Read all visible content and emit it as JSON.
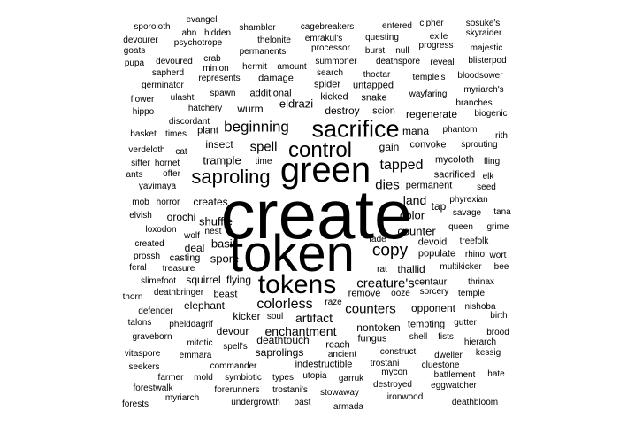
{
  "cloud": {
    "text_color": "#000000",
    "background": "#ffffff",
    "words": [
      {
        "text": "create",
        "weight": 100
      },
      {
        "text": "token",
        "weight": 92
      },
      {
        "text": "green",
        "weight": 72
      },
      {
        "text": "tokens",
        "weight": 55
      },
      {
        "text": "sacrifice",
        "weight": 55
      },
      {
        "text": "control",
        "weight": 52
      },
      {
        "text": "saproling",
        "weight": 45
      },
      {
        "text": "copy",
        "weight": 40
      },
      {
        "text": "beginning",
        "weight": 36
      },
      {
        "text": "tapped",
        "weight": 34
      },
      {
        "text": "colorless",
        "weight": 34
      },
      {
        "text": "creature's",
        "weight": 32
      },
      {
        "text": "counters",
        "weight": 32
      },
      {
        "text": "spell",
        "weight": 32
      },
      {
        "text": "dies",
        "weight": 32
      },
      {
        "text": "artifact",
        "weight": 30
      },
      {
        "text": "land",
        "weight": 30
      },
      {
        "text": "enchantment",
        "weight": 29
      },
      {
        "text": "color",
        "weight": 28
      },
      {
        "text": "counter",
        "weight": 28
      },
      {
        "text": "basic",
        "weight": 27
      },
      {
        "text": "spore",
        "weight": 27
      },
      {
        "text": "shuffle",
        "weight": 26
      },
      {
        "text": "trample",
        "weight": 26
      },
      {
        "text": "eldrazi",
        "weight": 26
      },
      {
        "text": "creates",
        "weight": 25
      },
      {
        "text": "orochi",
        "weight": 25
      },
      {
        "text": "mana",
        "weight": 24
      },
      {
        "text": "deal",
        "weight": 24
      },
      {
        "text": "gain",
        "weight": 24
      },
      {
        "text": "tap",
        "weight": 24
      },
      {
        "text": "kicker",
        "weight": 24
      },
      {
        "text": "devour",
        "weight": 24
      },
      {
        "text": "elephant",
        "weight": 24
      },
      {
        "text": "insect",
        "weight": 24
      },
      {
        "text": "flying",
        "weight": 24
      },
      {
        "text": "squirrel",
        "weight": 24
      },
      {
        "text": "thallid",
        "weight": 24
      },
      {
        "text": "destroy",
        "weight": 24
      },
      {
        "text": "wurm",
        "weight": 24
      },
      {
        "text": "deathtouch",
        "weight": 24
      },
      {
        "text": "opponent",
        "weight": 23
      },
      {
        "text": "saprolings",
        "weight": 23
      },
      {
        "text": "regenerate",
        "weight": 23
      },
      {
        "text": "nontoken",
        "weight": 23
      },
      {
        "text": "remove",
        "weight": 22
      },
      {
        "text": "reach",
        "weight": 22
      },
      {
        "text": "fungus",
        "weight": 22
      },
      {
        "text": "devoid",
        "weight": 22
      },
      {
        "text": "populate",
        "weight": 22
      },
      {
        "text": "beast",
        "weight": 22
      },
      {
        "text": "permanent",
        "weight": 22
      },
      {
        "text": "sacrificed",
        "weight": 22
      },
      {
        "text": "additional",
        "weight": 22
      },
      {
        "text": "convoke",
        "weight": 22
      },
      {
        "text": "tempting",
        "weight": 22
      },
      {
        "text": "mycoloth",
        "weight": 22
      },
      {
        "text": "centaur",
        "weight": 22
      },
      {
        "text": "damage",
        "weight": 22
      },
      {
        "text": "untapped",
        "weight": 22
      },
      {
        "text": "casting",
        "weight": 22
      },
      {
        "text": "kicked",
        "weight": 22
      },
      {
        "text": "snake",
        "weight": 22
      },
      {
        "text": "spider",
        "weight": 22
      },
      {
        "text": "scion",
        "weight": 22
      },
      {
        "text": "indestructible",
        "weight": 21
      },
      {
        "text": "plant",
        "weight": 21
      },
      {
        "text": "sorcery",
        "weight": 20
      },
      {
        "text": "ooze",
        "weight": 20
      },
      {
        "text": "search",
        "weight": 20
      },
      {
        "text": "wolf",
        "weight": 20
      },
      {
        "text": "treefolk",
        "weight": 19
      },
      {
        "text": "queen",
        "weight": 19
      },
      {
        "text": "time",
        "weight": 19
      },
      {
        "text": "phantom",
        "weight": 19
      },
      {
        "text": "sprouting",
        "weight": 19
      },
      {
        "text": "fling",
        "weight": 19
      },
      {
        "text": "savage",
        "weight": 19
      },
      {
        "text": "grime",
        "weight": 19
      },
      {
        "text": "phyrexian",
        "weight": 19
      },
      {
        "text": "temple",
        "weight": 19
      },
      {
        "text": "rhino",
        "weight": 19
      },
      {
        "text": "wort",
        "weight": 19
      },
      {
        "text": "tana",
        "weight": 19
      },
      {
        "text": "multikicker",
        "weight": 19
      },
      {
        "text": "bee",
        "weight": 19
      },
      {
        "text": "thrinax",
        "weight": 19
      },
      {
        "text": "nishoba",
        "weight": 19
      },
      {
        "text": "birth",
        "weight": 19
      },
      {
        "text": "hierarch",
        "weight": 19
      },
      {
        "text": "brood",
        "weight": 19
      },
      {
        "text": "kessig",
        "weight": 19
      },
      {
        "text": "hate",
        "weight": 19
      },
      {
        "text": "gutter",
        "weight": 19
      },
      {
        "text": "battlement",
        "weight": 19
      },
      {
        "text": "cluestone",
        "weight": 19
      },
      {
        "text": "dweller",
        "weight": 19
      },
      {
        "text": "eggwatcher",
        "weight": 19
      },
      {
        "text": "deathbloom",
        "weight": 19
      },
      {
        "text": "ironwood",
        "weight": 19
      },
      {
        "text": "mycon",
        "weight": 19
      },
      {
        "text": "destroyed",
        "weight": 19
      },
      {
        "text": "trostani",
        "weight": 19
      },
      {
        "text": "construct",
        "weight": 19
      },
      {
        "text": "shell",
        "weight": 19
      },
      {
        "text": "fists",
        "weight": 19
      },
      {
        "text": "ancient",
        "weight": 19
      },
      {
        "text": "garruk",
        "weight": 19
      },
      {
        "text": "stowaway",
        "weight": 19
      },
      {
        "text": "armada",
        "weight": 19
      },
      {
        "text": "utopia",
        "weight": 19
      },
      {
        "text": "trostani's",
        "weight": 19
      },
      {
        "text": "past",
        "weight": 19
      },
      {
        "text": "types",
        "weight": 19
      },
      {
        "text": "undergrowth",
        "weight": 19
      },
      {
        "text": "forerunners",
        "weight": 19
      },
      {
        "text": "symbiotic",
        "weight": 19
      },
      {
        "text": "commander",
        "weight": 19
      },
      {
        "text": "spell's",
        "weight": 19
      },
      {
        "text": "mold",
        "weight": 19
      },
      {
        "text": "myriarch",
        "weight": 19
      },
      {
        "text": "forestwalk",
        "weight": 19
      },
      {
        "text": "farmer",
        "weight": 19
      },
      {
        "text": "forests",
        "weight": 19
      },
      {
        "text": "seekers",
        "weight": 19
      },
      {
        "text": "vitaspore",
        "weight": 19
      },
      {
        "text": "emmara",
        "weight": 19
      },
      {
        "text": "mitotic",
        "weight": 19
      },
      {
        "text": "graveborn",
        "weight": 19
      },
      {
        "text": "talons",
        "weight": 19
      },
      {
        "text": "phelddagrif",
        "weight": 19
      },
      {
        "text": "defender",
        "weight": 19
      },
      {
        "text": "soul",
        "weight": 19
      },
      {
        "text": "raze",
        "weight": 19
      },
      {
        "text": "deathbringer",
        "weight": 19
      },
      {
        "text": "thorn",
        "weight": 19
      },
      {
        "text": "slimefoot",
        "weight": 19
      },
      {
        "text": "treasure",
        "weight": 19
      },
      {
        "text": "feral",
        "weight": 19
      },
      {
        "text": "prossh",
        "weight": 19
      },
      {
        "text": "created",
        "weight": 19
      },
      {
        "text": "loxodon",
        "weight": 19
      },
      {
        "text": "nest",
        "weight": 19
      },
      {
        "text": "elvish",
        "weight": 19
      },
      {
        "text": "mob",
        "weight": 19
      },
      {
        "text": "horror",
        "weight": 19
      },
      {
        "text": "fade",
        "weight": 19
      },
      {
        "text": "rat",
        "weight": 19
      },
      {
        "text": "yavimaya",
        "weight": 19
      },
      {
        "text": "ants",
        "weight": 19
      },
      {
        "text": "offer",
        "weight": 19
      },
      {
        "text": "sifter",
        "weight": 19
      },
      {
        "text": "hornet",
        "weight": 19
      },
      {
        "text": "verdeloth",
        "weight": 19
      },
      {
        "text": "cat",
        "weight": 19
      },
      {
        "text": "basket",
        "weight": 19
      },
      {
        "text": "times",
        "weight": 19
      },
      {
        "text": "hippo",
        "weight": 19
      },
      {
        "text": "discordant",
        "weight": 19
      },
      {
        "text": "hatchery",
        "weight": 19
      },
      {
        "text": "flower",
        "weight": 19
      },
      {
        "text": "ulasht",
        "weight": 19
      },
      {
        "text": "spawn",
        "weight": 19
      },
      {
        "text": "germinator",
        "weight": 19
      },
      {
        "text": "represents",
        "weight": 19
      },
      {
        "text": "sapherd",
        "weight": 19
      },
      {
        "text": "minion",
        "weight": 19
      },
      {
        "text": "pupa",
        "weight": 19
      },
      {
        "text": "devoured",
        "weight": 19
      },
      {
        "text": "crab",
        "weight": 19
      },
      {
        "text": "hermit",
        "weight": 19
      },
      {
        "text": "amount",
        "weight": 19
      },
      {
        "text": "goats",
        "weight": 19
      },
      {
        "text": "devourer",
        "weight": 19
      },
      {
        "text": "psychotrope",
        "weight": 19
      },
      {
        "text": "permanents",
        "weight": 19
      },
      {
        "text": "sporoloth",
        "weight": 19
      },
      {
        "text": "ahn",
        "weight": 19
      },
      {
        "text": "hidden",
        "weight": 19
      },
      {
        "text": "thelonite",
        "weight": 19
      },
      {
        "text": "evangel",
        "weight": 19
      },
      {
        "text": "shambler",
        "weight": 19
      },
      {
        "text": "cagebreakers",
        "weight": 19
      },
      {
        "text": "emrakul's",
        "weight": 19
      },
      {
        "text": "processor",
        "weight": 19
      },
      {
        "text": "summoner",
        "weight": 19
      },
      {
        "text": "thoctar",
        "weight": 19
      },
      {
        "text": "questing",
        "weight": 19
      },
      {
        "text": "burst",
        "weight": 19
      },
      {
        "text": "null",
        "weight": 19
      },
      {
        "text": "entered",
        "weight": 19
      },
      {
        "text": "deathspore",
        "weight": 19
      },
      {
        "text": "cipher",
        "weight": 19
      },
      {
        "text": "exile",
        "weight": 19
      },
      {
        "text": "progress",
        "weight": 19
      },
      {
        "text": "reveal",
        "weight": 19
      },
      {
        "text": "temple's",
        "weight": 19
      },
      {
        "text": "wayfaring",
        "weight": 19
      },
      {
        "text": "sosuke's",
        "weight": 19
      },
      {
        "text": "skyraider",
        "weight": 19
      },
      {
        "text": "majestic",
        "weight": 19
      },
      {
        "text": "blisterpod",
        "weight": 19
      },
      {
        "text": "bloodsower",
        "weight": 19
      },
      {
        "text": "myriarch's",
        "weight": 19
      },
      {
        "text": "branches",
        "weight": 19
      },
      {
        "text": "biogenic",
        "weight": 19
      },
      {
        "text": "rith",
        "weight": 19
      },
      {
        "text": "elk",
        "weight": 19
      },
      {
        "text": "seed",
        "weight": 19
      }
    ]
  }
}
